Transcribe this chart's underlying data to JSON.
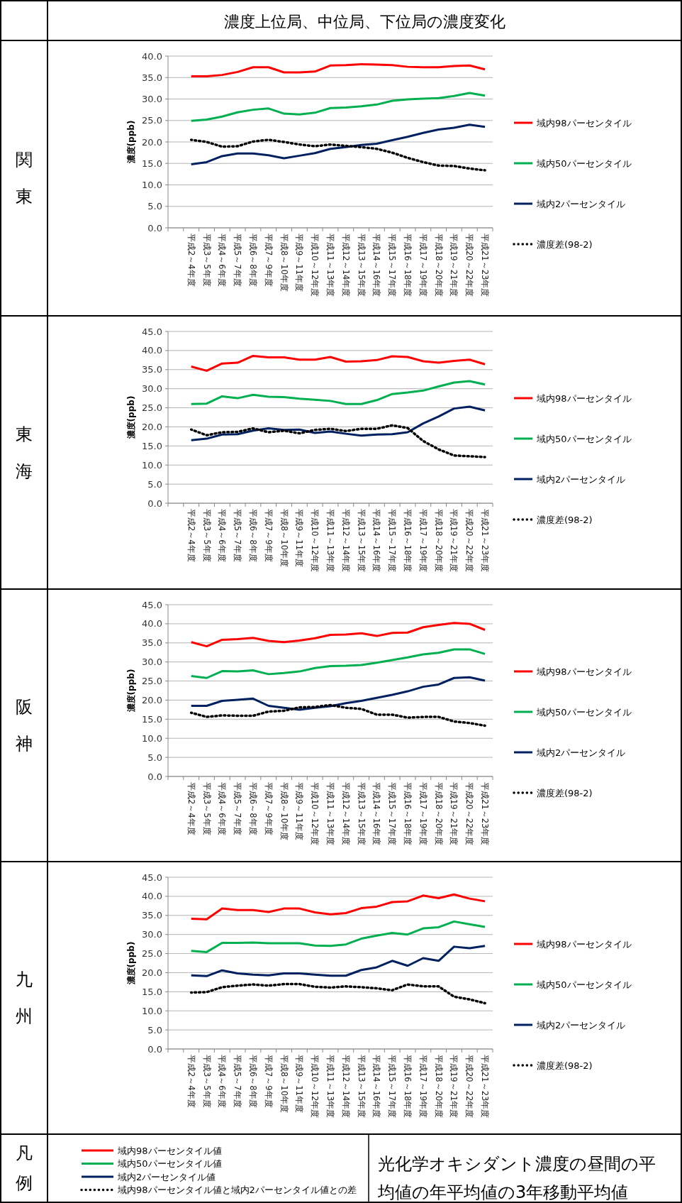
{
  "chart_data": [
    {
      "type": "other",
      "title": "濃度上位局、中位局、下位局の濃度変化"
    },
    {
      "type": "line",
      "annotations": [
        "関東"
      ],
      "ylabel": "濃度(ppb)",
      "categories": [
        null,
        "平成2～4年度",
        "平成3～5年度",
        "平成4～6年度",
        "平成5～7年度",
        "平成6～8年度",
        "平成7～9年度",
        "平成8～10年度",
        "平成9～11年度",
        "平成10～12年度",
        "平成11～13年度",
        "平成12～14年度",
        "平成13～15年度",
        "平成14～16年度",
        "平成15～17年度",
        "平成16～18年度",
        "平成17～19年度",
        "平成18～20年度",
        "平成19～21年度",
        "平成20～22年度",
        "平成21～23年度"
      ],
      "ylim": [
        0,
        40
      ],
      "yticks": [
        {
          "value": 0,
          "label": "0.0"
        },
        {
          "value": 5,
          "label": "5.0"
        },
        {
          "value": 10,
          "label": "10.0"
        },
        {
          "value": 15,
          "label": "15.0"
        },
        {
          "value": 20,
          "label": "20.0"
        },
        {
          "value": 25,
          "label": "25.0"
        },
        {
          "value": 30,
          "label": "30.0"
        },
        {
          "value": 35,
          "label": "35.0"
        },
        {
          "value": 40,
          "label": "40.0"
        }
      ],
      "grid": "y",
      "legend": "right",
      "line_style": "solid",
      "series": [
        {
          "name": "域内98パーセンタイル",
          "color": "#ff0000",
          "values": [
            null,
            35.3,
            35.3,
            35.6,
            36.3,
            37.4,
            37.4,
            36.2,
            36.2,
            36.4,
            37.8,
            37.9,
            38.1,
            38.0,
            37.9,
            37.5,
            37.4,
            37.4,
            37.7,
            37.8,
            36.9
          ]
        },
        {
          "name": "域内50パーセンタイル",
          "color": "#00b050",
          "values": [
            null,
            24.9,
            25.2,
            25.9,
            26.9,
            27.5,
            27.8,
            26.6,
            26.4,
            26.8,
            27.9,
            28.0,
            28.3,
            28.7,
            29.6,
            29.9,
            30.1,
            30.2,
            30.7,
            31.4,
            30.8
          ]
        },
        {
          "name": "域内2パーセンタイル",
          "color": "#002060",
          "values": [
            null,
            14.8,
            15.3,
            16.7,
            17.3,
            17.3,
            16.9,
            16.2,
            16.8,
            17.4,
            18.4,
            18.8,
            19.3,
            19.6,
            20.4,
            21.2,
            22.1,
            22.9,
            23.3,
            24.0,
            23.5
          ]
        },
        {
          "name": "濃度差(98-2)",
          "color": "#000000",
          "line_style": "dotted",
          "values": [
            null,
            20.5,
            20.0,
            18.9,
            19.0,
            20.1,
            20.5,
            20.0,
            19.4,
            19.0,
            19.4,
            19.1,
            18.8,
            18.4,
            17.5,
            16.3,
            15.3,
            14.5,
            14.4,
            13.8,
            13.4
          ]
        }
      ]
    },
    {
      "type": "line",
      "annotations": [
        "東海"
      ],
      "ylabel": "濃度(ppb)",
      "categories": [
        null,
        "平成2～4年度",
        "平成3～5年度",
        "平成4～6年度",
        "平成5～7年度",
        "平成6～8年度",
        "平成7～9年度",
        "平成8～10年度",
        "平成9～11年度",
        "平成10～12年度",
        "平成11～13年度",
        "平成12～14年度",
        "平成13～15年度",
        "平成14～16年度",
        "平成15～17年度",
        "平成16～18年度",
        "平成17～19年度",
        "平成18～20年度",
        "平成19～21年度",
        "平成20～22年度",
        "平成21～23年度"
      ],
      "ylim": [
        0,
        45
      ],
      "yticks": [
        {
          "value": 0,
          "label": "0.0"
        },
        {
          "value": 5,
          "label": "5.0"
        },
        {
          "value": 10,
          "label": "10.0"
        },
        {
          "value": 15,
          "label": "15.0"
        },
        {
          "value": 20,
          "label": "20.0"
        },
        {
          "value": 25,
          "label": "25.0"
        },
        {
          "value": 30,
          "label": "30.0"
        },
        {
          "value": 35,
          "label": "35.0"
        },
        {
          "value": 40,
          "label": "40.0"
        },
        {
          "value": 45,
          "label": "45.0"
        }
      ],
      "grid": "y",
      "legend": "right",
      "line_style": "solid",
      "series": [
        {
          "name": "域内98パーセンタイル",
          "color": "#ff0000",
          "values": [
            null,
            35.8,
            34.7,
            36.6,
            36.8,
            38.6,
            38.2,
            38.2,
            37.6,
            37.6,
            38.3,
            37.1,
            37.2,
            37.5,
            38.5,
            38.3,
            37.2,
            36.8,
            37.3,
            37.6,
            36.4
          ]
        },
        {
          "name": "域内50パーセンタイル",
          "color": "#00b050",
          "values": [
            null,
            26.0,
            26.1,
            28.0,
            27.5,
            28.4,
            27.9,
            27.8,
            27.4,
            27.1,
            26.8,
            26.0,
            26.0,
            27.0,
            28.6,
            29.0,
            29.5,
            30.6,
            31.6,
            32.0,
            31.1
          ]
        },
        {
          "name": "域内2パーセンタイル",
          "color": "#002060",
          "values": [
            null,
            16.5,
            16.9,
            18.0,
            18.1,
            19.0,
            19.6,
            19.2,
            19.3,
            18.4,
            18.8,
            18.2,
            17.7,
            18.0,
            18.1,
            18.6,
            20.9,
            22.7,
            24.8,
            25.3,
            24.3
          ]
        },
        {
          "name": "濃度差(98-2)",
          "color": "#000000",
          "line_style": "dotted",
          "values": [
            null,
            19.3,
            17.8,
            18.6,
            18.7,
            19.6,
            18.6,
            19.0,
            18.3,
            19.2,
            19.5,
            18.9,
            19.5,
            19.5,
            20.4,
            19.7,
            16.3,
            14.1,
            12.5,
            12.3,
            12.1
          ]
        }
      ]
    },
    {
      "type": "line",
      "annotations": [
        "阪神"
      ],
      "ylabel": "濃度(ppb)",
      "categories": [
        null,
        "平成2～4年度",
        "平成3～5年度",
        "平成4～6年度",
        "平成5～7年度",
        "平成6～8年度",
        "平成7～9年度",
        "平成8～10年度",
        "平成9～11年度",
        "平成10～12年度",
        "平成11～13年度",
        "平成12～14年度",
        "平成13～15年度",
        "平成14～16年度",
        "平成15～17年度",
        "平成16～18年度",
        "平成17～19年度",
        "平成18～20年度",
        "平成19～21年度",
        "平成20～22年度",
        "平成21～23年度"
      ],
      "ylim": [
        0,
        45
      ],
      "yticks": [
        {
          "value": 0,
          "label": "0.0"
        },
        {
          "value": 5,
          "label": "5.0"
        },
        {
          "value": 10,
          "label": "10.0"
        },
        {
          "value": 15,
          "label": "15.0"
        },
        {
          "value": 20,
          "label": "20.0"
        },
        {
          "value": 25,
          "label": "25.0"
        },
        {
          "value": 30,
          "label": "30.0"
        },
        {
          "value": 35,
          "label": "35.0"
        },
        {
          "value": 40,
          "label": "40.0"
        },
        {
          "value": 45,
          "label": "45.0"
        }
      ],
      "grid": "y",
      "legend": "right",
      "line_style": "solid",
      "series": [
        {
          "name": "域内98パーセンタイル",
          "color": "#ff0000",
          "values": [
            null,
            35.2,
            34.1,
            35.8,
            36.0,
            36.3,
            35.5,
            35.2,
            35.6,
            36.2,
            37.1,
            37.2,
            37.5,
            36.8,
            37.6,
            37.7,
            39.1,
            39.7,
            40.2,
            40.0,
            38.4
          ]
        },
        {
          "name": "域内50パーセンタイル",
          "color": "#00b050",
          "values": [
            null,
            26.3,
            25.8,
            27.6,
            27.5,
            27.8,
            26.8,
            27.1,
            27.5,
            28.4,
            28.9,
            29.0,
            29.2,
            29.8,
            30.5,
            31.2,
            32.0,
            32.4,
            33.3,
            33.3,
            32.1
          ]
        },
        {
          "name": "域内2パーセンタイル",
          "color": "#002060",
          "values": [
            null,
            18.5,
            18.5,
            19.8,
            20.1,
            20.4,
            18.5,
            18.0,
            17.5,
            18.0,
            18.4,
            19.2,
            19.8,
            20.6,
            21.4,
            22.3,
            23.5,
            24.1,
            25.8,
            26.0,
            25.1
          ]
        },
        {
          "name": "濃度差(98-2)",
          "color": "#000000",
          "line_style": "dotted",
          "values": [
            null,
            16.7,
            15.6,
            16.0,
            15.9,
            15.9,
            17.0,
            17.2,
            18.1,
            18.2,
            18.7,
            18.0,
            17.7,
            16.2,
            16.2,
            15.4,
            15.6,
            15.6,
            14.4,
            14.0,
            13.3
          ]
        }
      ]
    },
    {
      "type": "line",
      "annotations": [
        "九州"
      ],
      "ylabel": "濃度(ppb)",
      "categories": [
        null,
        "平成2～4年度",
        "平成3～5年度",
        "平成4～6年度",
        "平成5～7年度",
        "平成6～8年度",
        "平成7～9年度",
        "平成8～10年度",
        "平成9～11年度",
        "平成10～12年度",
        "平成11～13年度",
        "平成12～14年度",
        "平成13～15年度",
        "平成14～16年度",
        "平成15～17年度",
        "平成16～18年度",
        "平成17～19年度",
        "平成18～20年度",
        "平成19～21年度",
        "平成20～22年度",
        "平成21～23年度"
      ],
      "ylim": [
        0,
        45
      ],
      "yticks": [
        {
          "value": 0,
          "label": "0.0"
        },
        {
          "value": 5,
          "label": "5.0"
        },
        {
          "value": 10,
          "label": "10.0"
        },
        {
          "value": 15,
          "label": "15.0"
        },
        {
          "value": 20,
          "label": "20.0"
        },
        {
          "value": 25,
          "label": "25.0"
        },
        {
          "value": 30,
          "label": "30.0"
        },
        {
          "value": 35,
          "label": "35.0"
        },
        {
          "value": 40,
          "label": "40.0"
        },
        {
          "value": 45,
          "label": "45.0"
        }
      ],
      "grid": "y",
      "legend": "right",
      "line_style": "solid",
      "series": [
        {
          "name": "域内98パーセンタイル",
          "color": "#ff0000",
          "values": [
            null,
            34.1,
            34.0,
            36.8,
            36.4,
            36.4,
            35.9,
            36.8,
            36.8,
            35.8,
            35.3,
            35.6,
            36.9,
            37.3,
            38.5,
            38.7,
            40.2,
            39.5,
            40.5,
            39.4,
            38.7
          ]
        },
        {
          "name": "域内50パーセンタイル",
          "color": "#00b050",
          "values": [
            null,
            25.7,
            25.4,
            27.8,
            27.8,
            27.9,
            27.7,
            27.7,
            27.7,
            27.1,
            27.0,
            27.4,
            28.9,
            29.7,
            30.4,
            30.0,
            31.6,
            31.9,
            33.4,
            32.7,
            32.0
          ]
        },
        {
          "name": "域内2パーセンタイル",
          "color": "#002060",
          "values": [
            null,
            19.3,
            19.1,
            20.6,
            19.8,
            19.5,
            19.3,
            19.8,
            19.8,
            19.5,
            19.2,
            19.2,
            20.7,
            21.4,
            23.1,
            21.8,
            23.8,
            23.1,
            26.8,
            26.4,
            27.0
          ]
        },
        {
          "name": "濃度差(98-2)",
          "color": "#000000",
          "line_style": "dotted",
          "values": [
            null,
            14.8,
            14.9,
            16.2,
            16.6,
            16.9,
            16.6,
            17.0,
            17.0,
            16.3,
            16.1,
            16.4,
            16.2,
            15.9,
            15.4,
            16.9,
            16.4,
            16.4,
            13.7,
            13.0,
            12.0
          ]
        }
      ]
    },
    {
      "type": "other",
      "annotations": [
        "凡例",
        "域内98パーセンタイル値",
        "域内50パーセンタイル値",
        "域内2パーセンタイル値",
        "域内98パーセンタイル値と域内2パーセンタイル値との差",
        "光化学オキシダント濃度の昼間の平均値の年平均値の3年移動平均値"
      ]
    }
  ]
}
